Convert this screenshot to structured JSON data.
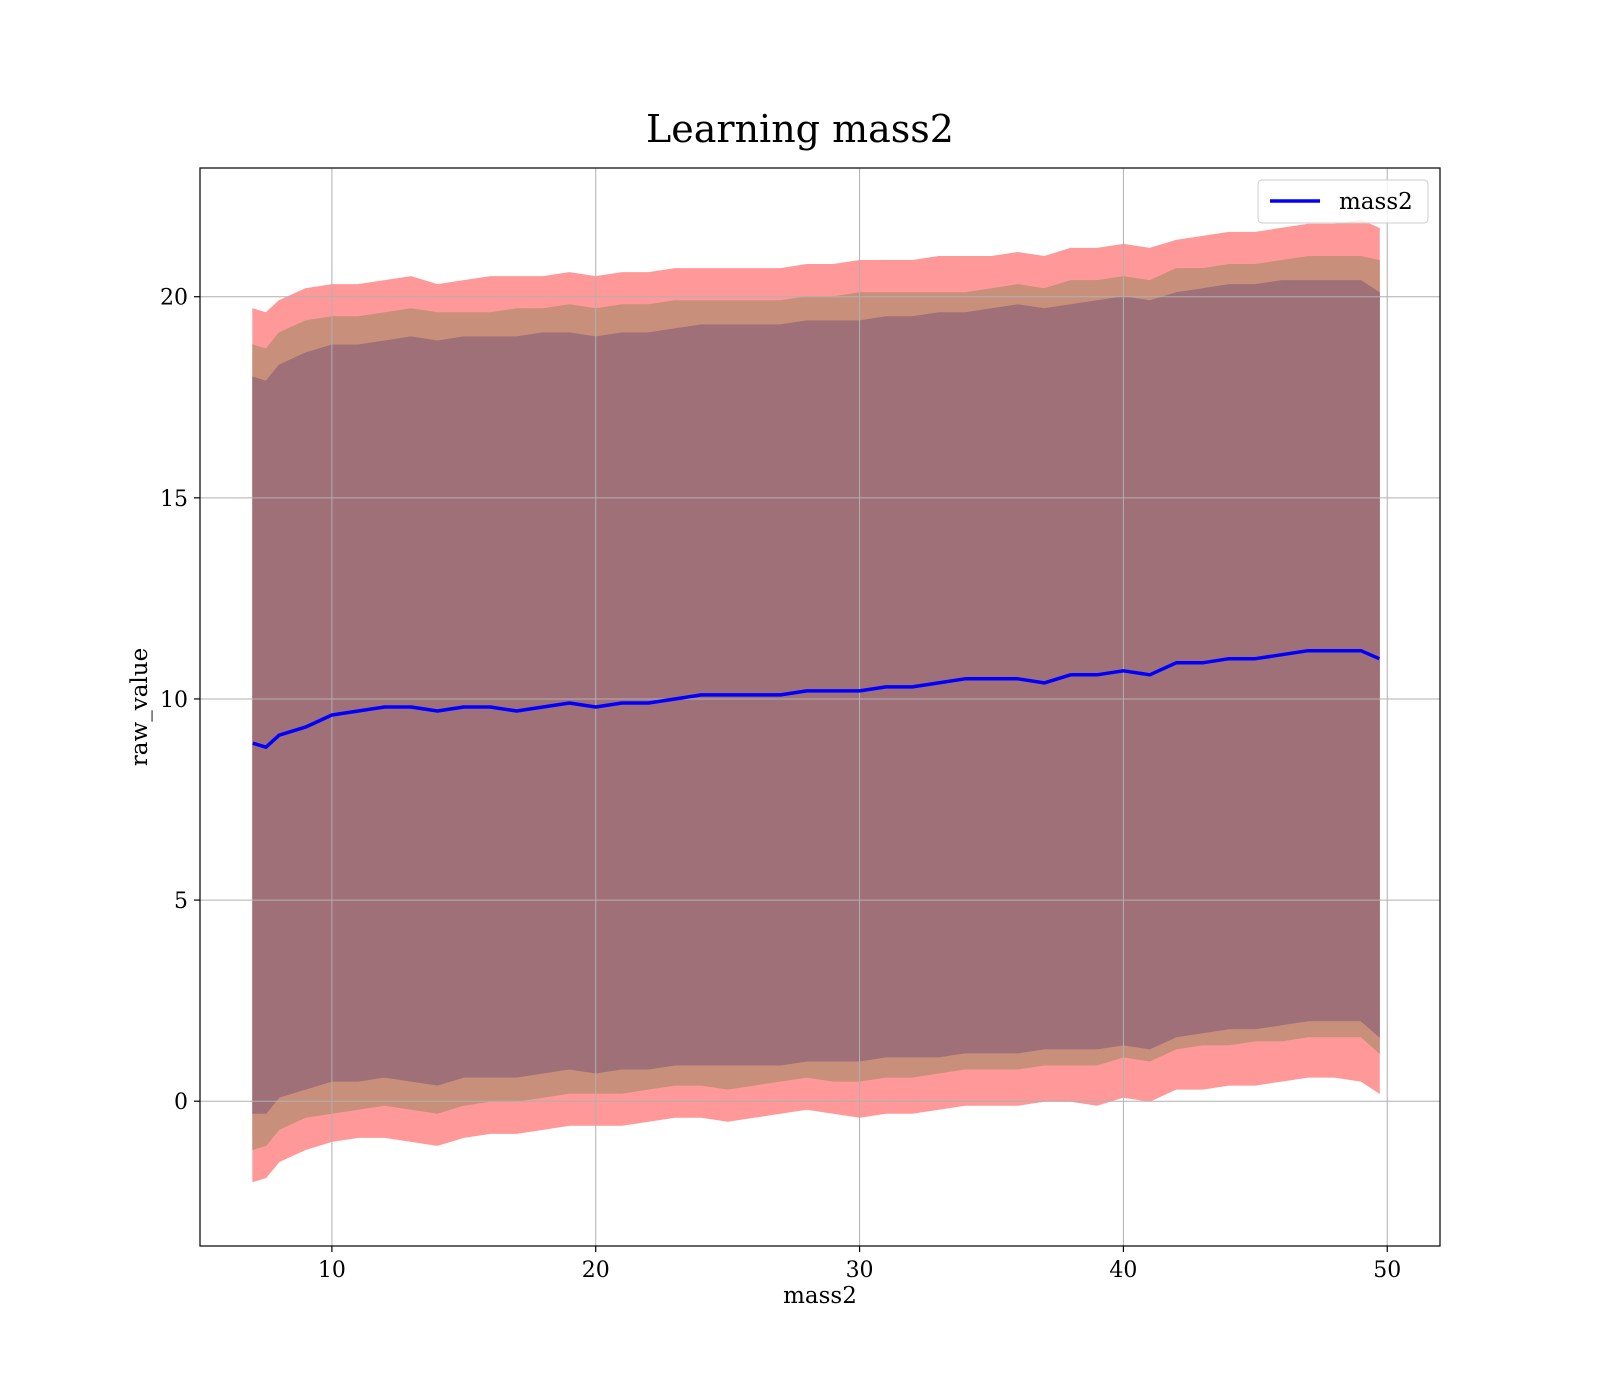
{
  "chart_data": {
    "type": "line",
    "title": "Learning mass2",
    "xlabel": "mass2",
    "ylabel": "raw_value",
    "xlim": [
      5,
      52
    ],
    "ylim": [
      -3.6,
      23.2
    ],
    "xticks": [
      10,
      20,
      30,
      40,
      50
    ],
    "yticks": [
      0,
      5,
      10,
      15,
      20
    ],
    "grid": true,
    "legend": {
      "placement": "top-right",
      "entries": [
        "mass2"
      ]
    },
    "colors": {
      "line": "#0000ff",
      "band_outer": "#ff9999",
      "band_middle": "#c8907a",
      "band_inner": "#a07078",
      "grid": "#b0b0b0"
    },
    "series": [
      {
        "name": "mass2",
        "x": [
          7.0,
          7.5,
          8.0,
          9.0,
          10.0,
          11.0,
          12.0,
          13.0,
          14.0,
          15.0,
          16.0,
          17.0,
          18.0,
          19.0,
          20.0,
          21.0,
          22.0,
          23.0,
          24.0,
          25.0,
          26.0,
          27.0,
          28.0,
          29.0,
          30.0,
          31.0,
          32.0,
          33.0,
          34.0,
          35.0,
          36.0,
          37.0,
          38.0,
          39.0,
          40.0,
          41.0,
          42.0,
          43.0,
          44.0,
          45.0,
          46.0,
          47.0,
          48.0,
          49.0,
          49.7
        ],
        "y": [
          8.9,
          8.8,
          9.1,
          9.3,
          9.6,
          9.7,
          9.8,
          9.8,
          9.7,
          9.8,
          9.8,
          9.7,
          9.8,
          9.9,
          9.8,
          9.9,
          9.9,
          10.0,
          10.1,
          10.1,
          10.1,
          10.1,
          10.2,
          10.2,
          10.2,
          10.3,
          10.3,
          10.4,
          10.5,
          10.5,
          10.5,
          10.4,
          10.6,
          10.6,
          10.7,
          10.6,
          10.9,
          10.9,
          11.0,
          11.0,
          11.1,
          11.2,
          11.2,
          11.2,
          11.0
        ]
      }
    ],
    "bands": [
      {
        "lower": [
          -2.0,
          -1.9,
          -1.5,
          -1.2,
          -1.0,
          -0.9,
          -0.9,
          -1.0,
          -1.1,
          -0.9,
          -0.8,
          -0.8,
          -0.7,
          -0.6,
          -0.6,
          -0.6,
          -0.5,
          -0.4,
          -0.4,
          -0.5,
          -0.4,
          -0.3,
          -0.2,
          -0.3,
          -0.4,
          -0.3,
          -0.3,
          -0.2,
          -0.1,
          -0.1,
          -0.1,
          0.0,
          0.0,
          -0.1,
          0.1,
          0.0,
          0.3,
          0.3,
          0.4,
          0.4,
          0.5,
          0.6,
          0.6,
          0.5,
          0.2
        ],
        "upper": [
          19.7,
          19.6,
          19.9,
          20.2,
          20.3,
          20.3,
          20.4,
          20.5,
          20.3,
          20.4,
          20.5,
          20.5,
          20.5,
          20.6,
          20.5,
          20.6,
          20.6,
          20.7,
          20.7,
          20.7,
          20.7,
          20.7,
          20.8,
          20.8,
          20.9,
          20.9,
          20.9,
          21.0,
          21.0,
          21.0,
          21.1,
          21.0,
          21.2,
          21.2,
          21.3,
          21.2,
          21.4,
          21.5,
          21.6,
          21.6,
          21.7,
          21.8,
          21.8,
          21.9,
          21.7
        ]
      },
      {
        "lower": [
          -1.2,
          -1.1,
          -0.7,
          -0.4,
          -0.3,
          -0.2,
          -0.1,
          -0.2,
          -0.3,
          -0.1,
          0.0,
          0.0,
          0.1,
          0.2,
          0.2,
          0.2,
          0.3,
          0.4,
          0.4,
          0.3,
          0.4,
          0.5,
          0.6,
          0.5,
          0.5,
          0.6,
          0.6,
          0.7,
          0.8,
          0.8,
          0.8,
          0.9,
          0.9,
          0.9,
          1.1,
          1.0,
          1.3,
          1.4,
          1.4,
          1.5,
          1.5,
          1.6,
          1.6,
          1.6,
          1.2
        ],
        "upper": [
          18.8,
          18.7,
          19.1,
          19.4,
          19.5,
          19.5,
          19.6,
          19.7,
          19.6,
          19.6,
          19.6,
          19.7,
          19.7,
          19.8,
          19.7,
          19.8,
          19.8,
          19.9,
          19.9,
          19.9,
          19.9,
          19.9,
          20.0,
          20.0,
          20.1,
          20.1,
          20.1,
          20.1,
          20.1,
          20.2,
          20.3,
          20.2,
          20.4,
          20.4,
          20.5,
          20.4,
          20.7,
          20.7,
          20.8,
          20.8,
          20.9,
          21.0,
          21.0,
          21.0,
          20.9
        ]
      },
      {
        "lower": [
          -0.3,
          -0.3,
          0.1,
          0.3,
          0.5,
          0.5,
          0.6,
          0.5,
          0.4,
          0.6,
          0.6,
          0.6,
          0.7,
          0.8,
          0.7,
          0.8,
          0.8,
          0.9,
          0.9,
          0.9,
          0.9,
          0.9,
          1.0,
          1.0,
          1.0,
          1.1,
          1.1,
          1.1,
          1.2,
          1.2,
          1.2,
          1.3,
          1.3,
          1.3,
          1.4,
          1.3,
          1.6,
          1.7,
          1.8,
          1.8,
          1.9,
          2.0,
          2.0,
          2.0,
          1.6
        ],
        "upper": [
          18.0,
          17.9,
          18.3,
          18.6,
          18.8,
          18.8,
          18.9,
          19.0,
          18.9,
          19.0,
          19.0,
          19.0,
          19.1,
          19.1,
          19.0,
          19.1,
          19.1,
          19.2,
          19.3,
          19.3,
          19.3,
          19.3,
          19.4,
          19.4,
          19.4,
          19.5,
          19.5,
          19.6,
          19.6,
          19.7,
          19.8,
          19.7,
          19.8,
          19.9,
          20.0,
          19.9,
          20.1,
          20.2,
          20.3,
          20.3,
          20.4,
          20.4,
          20.4,
          20.4,
          20.1
        ]
      }
    ]
  }
}
